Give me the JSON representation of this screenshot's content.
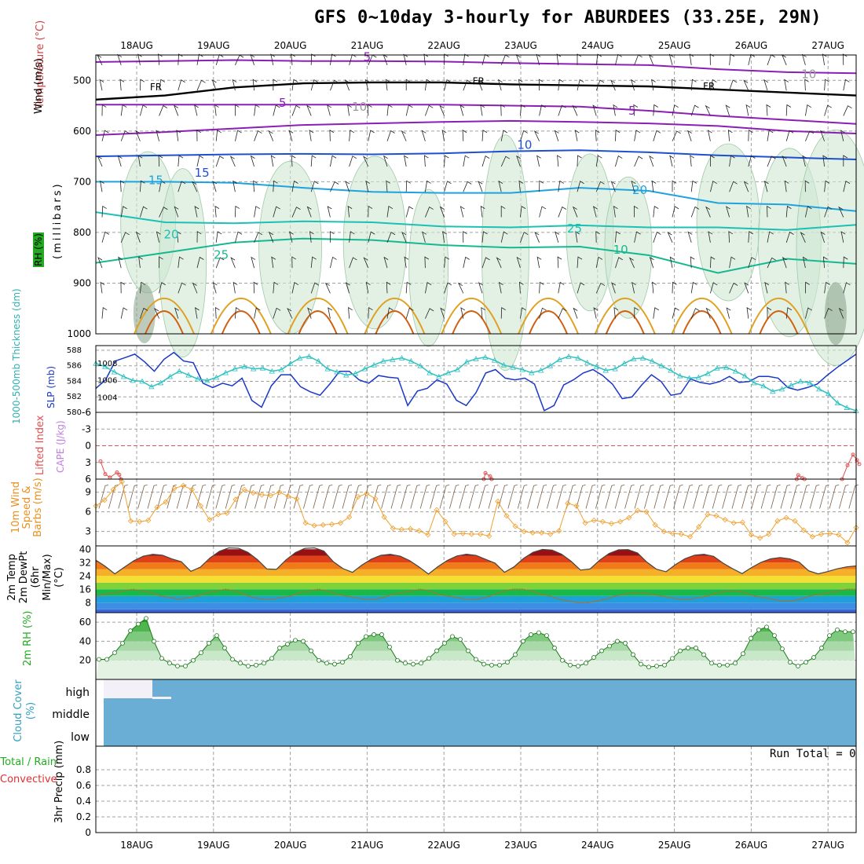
{
  "title": "GFS 0~10day 3-hourly for ABURDEES (33.25E, 29N)",
  "dates": [
    "18AUG",
    "19AUG",
    "20AUG",
    "21AUG",
    "22AUG",
    "23AUG",
    "24AUG",
    "25AUG",
    "26AUG",
    "27AUG"
  ],
  "run_total": "Run Total = 0",
  "colors": {
    "temp_neg5": "#8b1fb5",
    "temp_fr": "#000000",
    "temp_10": "#1e4fd0",
    "temp_15": "#1fa2e0",
    "temp_20": "#1cc0b5",
    "temp_25": "#15b890",
    "temp_warm1": "#e0a020",
    "temp_warm2": "#d06010",
    "slp": "#1a37c8",
    "thickness": "#30c0c0",
    "li": "#e05050",
    "wind10m": "#f0a030",
    "rh2m": "#30b030",
    "cloud": "#6aaed6",
    "grid": "#a0a0a0"
  },
  "chart_data": [
    {
      "type": "line",
      "panel": "upper-air",
      "ylabel_parts": [
        "RH (%)",
        "Temperature (°C)",
        "Wind (m/s)",
        "(millibars)"
      ],
      "y_ticks": [
        500,
        600,
        700,
        800,
        900,
        1000
      ],
      "ylim": [
        450,
        1000
      ],
      "contour_labels": [
        "5",
        "FR",
        "FR",
        "FR",
        "5",
        "10",
        "5",
        "10",
        "10",
        "15",
        "15",
        "20",
        "20",
        "25",
        "25",
        "10"
      ],
      "series": [
        {
          "name": "-5 upper",
          "level_mb": [
            464,
            462,
            460,
            462,
            462,
            463,
            466,
            468,
            470,
            478,
            484,
            486
          ]
        },
        {
          "name": "FR",
          "level_mb": [
            538,
            530,
            514,
            506,
            504,
            504,
            508,
            510,
            512,
            518,
            524,
            530
          ]
        },
        {
          "name": "-5 lower",
          "level_mb": [
            548,
            548,
            548,
            548,
            548,
            548,
            550,
            552,
            560,
            570,
            578,
            586
          ]
        },
        {
          "name": "5",
          "level_mb": [
            608,
            602,
            595,
            588,
            585,
            582,
            580,
            582,
            585,
            590,
            600,
            605
          ]
        },
        {
          "name": "10",
          "level_mb": [
            650,
            648,
            646,
            645,
            646,
            644,
            640,
            638,
            642,
            648,
            652,
            656
          ]
        },
        {
          "name": "15",
          "level_mb": [
            700,
            700,
            702,
            712,
            720,
            722,
            722,
            712,
            718,
            742,
            745,
            758
          ]
        },
        {
          "name": "20",
          "level_mb": [
            760,
            780,
            782,
            778,
            780,
            788,
            790,
            786,
            790,
            790,
            795,
            785
          ]
        },
        {
          "name": "25",
          "level_mb": [
            860,
            840,
            820,
            812,
            815,
            825,
            830,
            828,
            845,
            880,
            852,
            862
          ]
        }
      ]
    },
    {
      "type": "line",
      "panel": "pressure",
      "ylabel_left": "1000-500mb Thickness (dm)",
      "ylabel_right": "SLP (mb)",
      "thickness_ticks": [
        "580",
        "582",
        "584",
        "586",
        "588"
      ],
      "slp_ticks": [
        "1004",
        "1006",
        "1008"
      ],
      "series": [
        {
          "name": "SLP (mb)",
          "values": [
            1005.0,
            1006.0,
            1008.2,
            1008.6,
            1009.0,
            1008.1,
            1007.0,
            1008.4,
            1009.2,
            1008.2,
            1008.0,
            1005.6,
            1005.1,
            1005.6,
            1005.3,
            1006.2,
            1003.6,
            1002.8,
            1005.3,
            1006.6,
            1006.6,
            1005.2,
            1004.6,
            1004.2,
            1005.5,
            1007.0,
            1007.0,
            1006.0,
            1005.6,
            1006.5,
            1006.3,
            1006.2,
            1003.0,
            1004.7,
            1005.0,
            1006.0,
            1005.5,
            1003.6,
            1003.0,
            1004.5,
            1006.8,
            1007.2,
            1006.2,
            1006.0,
            1006.2,
            1005.5,
            1002.4,
            1003.0,
            1005.4,
            1006.0,
            1006.8,
            1007.2,
            1006.5,
            1005.5,
            1003.8,
            1004.0,
            1005.4,
            1006.6,
            1005.8,
            1004.2,
            1004.4,
            1006.1,
            1005.7,
            1005.5,
            1005.8,
            1006.4,
            1005.7,
            1005.8,
            1006.4,
            1006.4,
            1006.2,
            1005.1,
            1004.8,
            1005.1,
            1005.5,
            1006.5,
            1007.4,
            1008.2,
            1009.0
          ]
        },
        {
          "name": "1000-500mb Thickness (dm)",
          "values": [
            586.3,
            585.9,
            585.2,
            584.6,
            584.1,
            584.0,
            583.3,
            583.8,
            584.6,
            585.3,
            584.8,
            584.3,
            584.1,
            584.5,
            585.1,
            585.6,
            585.9,
            585.6,
            585.7,
            585.3,
            585.5,
            586.3,
            587.0,
            587.2,
            586.6,
            585.6,
            585.2,
            584.8,
            585.0,
            585.6,
            586.1,
            586.6,
            586.8,
            587.0,
            586.6,
            586.0,
            585.1,
            584.6,
            585.1,
            585.5,
            586.5,
            586.9,
            587.1,
            586.7,
            586.1,
            585.8,
            585.5,
            585.1,
            585.4,
            586.0,
            586.8,
            587.2,
            587.0,
            586.4,
            585.9,
            585.4,
            585.6,
            586.3,
            586.9,
            587.0,
            586.6,
            586.0,
            585.4,
            584.7,
            584.4,
            584.5,
            585.0,
            585.7,
            585.8,
            585.3,
            584.7,
            583.8,
            583.4,
            582.7,
            583.0,
            583.5,
            584.0,
            583.8,
            583.0,
            582.4,
            581.2,
            580.6,
            580.2
          ]
        }
      ]
    },
    {
      "type": "line",
      "panel": "stability",
      "ylabel_left": "Lifted Index",
      "ylabel_right": "CAPE (J/kg)",
      "y_ticks": [
        "-6",
        "-3",
        "0",
        "3",
        "6"
      ],
      "series": [
        {
          "name": "Lifted Index",
          "points": [
            [
              0.0,
              2.8
            ],
            [
              0.06,
              5.1
            ],
            [
              0.12,
              5.7
            ],
            [
              0.21,
              4.8
            ],
            [
              0.24,
              5.2
            ],
            [
              0.26,
              6.0
            ],
            [
              4.9,
              6.0
            ],
            [
              4.92,
              4.9
            ],
            [
              4.98,
              5.5
            ],
            [
              5.0,
              6.0
            ],
            [
              8.9,
              6.0
            ],
            [
              8.92,
              5.3
            ],
            [
              8.97,
              5.8
            ],
            [
              9.0,
              6.0
            ],
            [
              9.48,
              6.0
            ],
            [
              9.55,
              3.5
            ],
            [
              9.62,
              1.6
            ],
            [
              9.67,
              2.6
            ],
            [
              9.7,
              3.3
            ]
          ]
        }
      ]
    },
    {
      "type": "line",
      "panel": "wind10m",
      "ylabel": "10m Wind Speed & Barbs (m/s)",
      "y_ticks": [
        "3",
        "6",
        "9"
      ],
      "series": [
        {
          "name": "10m Wind Speed (m/s)",
          "values": [
            6.9,
            7.8,
            9.4,
            10.6,
            4.6,
            4.5,
            4.7,
            6.7,
            7.5,
            9.6,
            10.0,
            9.4,
            6.9,
            4.8,
            5.6,
            5.8,
            7.9,
            9.4,
            8.9,
            8.6,
            8.5,
            9.0,
            8.4,
            8.0,
            4.3,
            3.9,
            4.0,
            4.1,
            4.3,
            5.2,
            8.3,
            8.8,
            8.0,
            5.2,
            3.5,
            3.3,
            3.4,
            3.1,
            2.5,
            6.3,
            4.5,
            2.6,
            2.7,
            2.6,
            2.6,
            2.3,
            7.6,
            5.4,
            3.8,
            3.0,
            2.8,
            2.8,
            2.6,
            3.1,
            7.3,
            6.9,
            4.3,
            4.7,
            4.5,
            4.2,
            4.5,
            5.1,
            6.2,
            6.0,
            4.0,
            3.0,
            2.7,
            2.6,
            2.2,
            3.7,
            5.6,
            5.4,
            4.8,
            4.3,
            4.4,
            2.5,
            2.0,
            2.6,
            4.6,
            5.1,
            4.6,
            3.2,
            2.2,
            2.6,
            2.7,
            2.5,
            1.3,
            3.6
          ]
        }
      ]
    },
    {
      "type": "area",
      "panel": "temperature",
      "ylabel": "2m Temp 2m DewPt (6hr Min/Max) (°C)",
      "y_ticks": [
        "8",
        "16",
        "24",
        "32",
        "40"
      ],
      "series": [
        {
          "name": "2m Temp (°C)",
          "daily_min": [
            25,
            25,
            25,
            25,
            25,
            25,
            25,
            25,
            25,
            25
          ],
          "daily_max": [
            37,
            41,
            41,
            37,
            37,
            40,
            40,
            37,
            35,
            30
          ]
        },
        {
          "name": "2m DewPt (°C)",
          "values": [
            12,
            13,
            14,
            15,
            16,
            15,
            14,
            12,
            11,
            10,
            11,
            12,
            14,
            15,
            16,
            15,
            13,
            11,
            10,
            10,
            11,
            12,
            14,
            15,
            16,
            15,
            13,
            12,
            11,
            10,
            10,
            11,
            13,
            14,
            15,
            16,
            15,
            13,
            12,
            11,
            10,
            10,
            11,
            13,
            15,
            16,
            16,
            15,
            13,
            12,
            10,
            9,
            8,
            8,
            9,
            10,
            12,
            13,
            14,
            14,
            13,
            12,
            11,
            10,
            10,
            11,
            12,
            14,
            15,
            15,
            14,
            12,
            11,
            10,
            9,
            9,
            10,
            12,
            13,
            14,
            15,
            16,
            16
          ]
        }
      ]
    },
    {
      "type": "area",
      "panel": "rh2m",
      "ylabel": "2m RH (%)",
      "y_ticks": [
        "20",
        "40",
        "60"
      ],
      "series": [
        {
          "name": "2m RH (%)",
          "values": [
            21,
            21,
            28,
            38,
            51,
            58,
            64,
            40,
            22,
            17,
            14,
            14,
            20,
            28,
            38,
            46,
            33,
            21,
            17,
            14,
            15,
            17,
            22,
            33,
            37,
            41,
            40,
            30,
            20,
            17,
            16,
            18,
            24,
            38,
            45,
            47,
            47,
            34,
            20,
            17,
            16,
            17,
            22,
            30,
            38,
            45,
            42,
            30,
            21,
            16,
            15,
            15,
            18,
            26,
            40,
            47,
            49,
            46,
            33,
            20,
            15,
            14,
            17,
            23,
            30,
            35,
            40,
            38,
            26,
            16,
            13,
            14,
            15,
            22,
            30,
            33,
            33,
            26,
            17,
            15,
            15,
            17,
            27,
            43,
            52,
            55,
            46,
            32,
            18,
            14,
            18,
            23,
            33,
            46,
            52,
            50,
            50
          ]
        }
      ]
    },
    {
      "type": "bar",
      "panel": "cloud",
      "ylabel": "Cloud Cover (%)",
      "categories": [
        "high",
        "middle",
        "low"
      ]
    },
    {
      "type": "bar",
      "panel": "precip",
      "ylabel": "3hr Precip (mm)",
      "legend": [
        "Total / Rain",
        "Convective"
      ],
      "y_ticks": [
        "0",
        "0.2",
        "0.4",
        "0.6",
        "0.8"
      ],
      "values": [
        0
      ]
    }
  ]
}
